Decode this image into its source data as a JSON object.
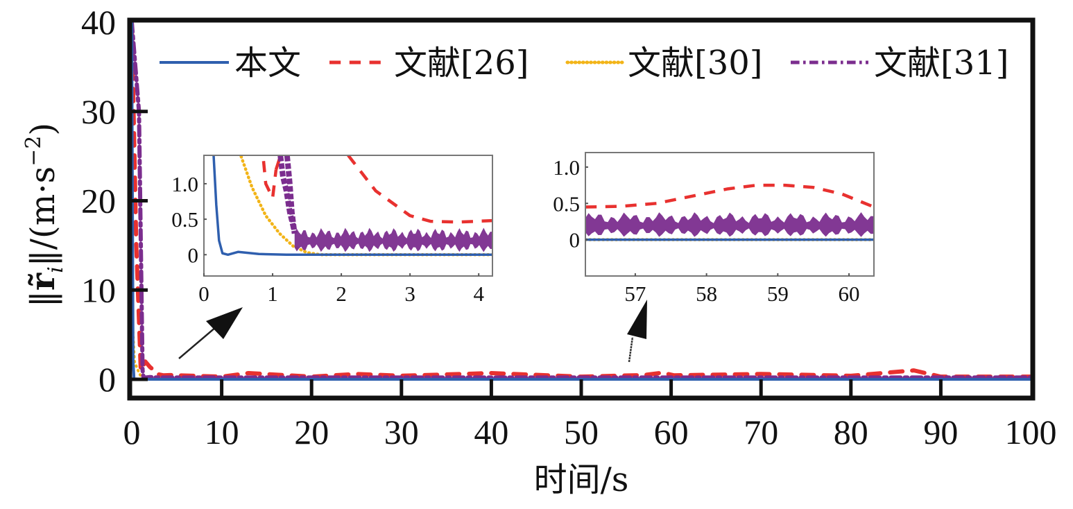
{
  "chart_data": {
    "type": "line",
    "title": "",
    "xlabel": "时间/s",
    "ylabel": "‖r̃ᵢ‖/(m·s⁻²)",
    "ylabel_parts": {
      "norm_open": "‖",
      "symbol": "r̃",
      "subscript": "i",
      "norm_close": "‖",
      "unit": "/(m·s",
      "exponent": "−2",
      "unit_close": ")"
    },
    "xlim": [
      0,
      100
    ],
    "ylim": [
      0,
      40
    ],
    "xticks": [
      0,
      10,
      20,
      30,
      40,
      50,
      60,
      70,
      80,
      90,
      100
    ],
    "yticks": [
      0,
      10,
      20,
      30,
      40
    ],
    "grid": false,
    "legend_position": "top",
    "series": [
      {
        "name": "本文",
        "color": "#2f5fae",
        "style": "solid",
        "x": [
          0,
          0.15,
          0.25,
          0.3,
          0.5,
          1,
          2,
          5,
          10,
          20,
          40,
          60,
          80,
          100
        ],
        "y": [
          40,
          2,
          0.1,
          0.02,
          0.05,
          0.02,
          0,
          0,
          0,
          0,
          0,
          0,
          0,
          0
        ]
      },
      {
        "name": "文献[26]",
        "color": "#e8312f",
        "style": "dashed",
        "x": [
          0,
          0.5,
          1,
          1.5,
          2,
          3,
          3.5,
          4.2,
          10,
          13,
          20,
          25,
          30,
          40,
          50,
          57,
          59,
          60.3,
          70,
          80,
          87,
          90,
          100
        ],
        "y": [
          40,
          15,
          1.0,
          2.0,
          1.4,
          0.55,
          0.45,
          0.48,
          0.3,
          0.7,
          0.3,
          0.6,
          0.4,
          0.7,
          0.3,
          0.48,
          0.74,
          0.45,
          0.6,
          0.4,
          1.0,
          0.3,
          0.3
        ]
      },
      {
        "name": "文献[30]",
        "color": "#f2b418",
        "style": "dotted",
        "x": [
          0,
          0.3,
          0.6,
          1,
          1.4,
          1.7,
          2,
          10,
          50,
          100
        ],
        "y": [
          8,
          2,
          1.2,
          0.35,
          0.05,
          0,
          0,
          0,
          0,
          0
        ]
      },
      {
        "name": "文献[31]",
        "color": "#7b2d8e",
        "style": "dashdot",
        "x": [
          0,
          0.8,
          1.2,
          1.3,
          1.5,
          2,
          3,
          4.2,
          10,
          30,
          57,
          60,
          100
        ],
        "y": [
          40,
          30,
          1.0,
          0.25,
          0.2,
          0.25,
          0.2,
          0.2,
          0.2,
          0.2,
          0.2,
          0.2,
          0.2
        ]
      }
    ],
    "insets": [
      {
        "xlim": [
          0,
          4.2
        ],
        "ylim": [
          -0.3,
          1.4
        ],
        "xticks": [
          "0",
          "1",
          "2",
          "3",
          "4"
        ],
        "yticks": [
          "0",
          "0.5",
          "1.0"
        ],
        "xtick_values": [
          0,
          1,
          2,
          3,
          4
        ],
        "ytick_values": [
          0,
          0.5,
          1.0
        ]
      },
      {
        "xlim": [
          56.3,
          60.35
        ],
        "ylim": [
          -0.5,
          1.2
        ],
        "xticks": [
          "57",
          "58",
          "59",
          "60"
        ],
        "yticks": [
          "0",
          "0.5",
          "1.0"
        ],
        "xtick_values": [
          57,
          58,
          59,
          60
        ],
        "ytick_values": [
          0,
          0.5,
          1.0
        ]
      }
    ],
    "annotations": [
      "arrow pointing to inset 1 (0–4 s)",
      "arrow pointing to inset 2 (56–60 s)"
    ]
  }
}
